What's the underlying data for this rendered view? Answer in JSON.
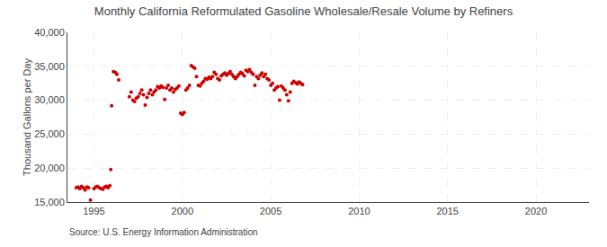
{
  "chart_data": {
    "type": "scatter",
    "title": "Monthly California Reformulated Gasoline Wholesale/Resale Volume by Refiners",
    "ylabel": "Thousand Gallons per Day",
    "annotations": [
      "Source: U.S. Energy Information Administration"
    ],
    "color": "#cc0000",
    "grid": true,
    "xlim": [
      1993.5,
      2023
    ],
    "ylim": [
      15000,
      40000
    ],
    "xticks": [
      1995,
      2000,
      2005,
      2010,
      2015,
      2020
    ],
    "yticks": [
      {
        "value": 15000,
        "label": "15,000"
      },
      {
        "value": 20000,
        "label": "20,000"
      },
      {
        "value": 25000,
        "label": "25,000"
      },
      {
        "value": 30000,
        "label": "30,000"
      },
      {
        "value": 35000,
        "label": "35,000"
      },
      {
        "value": 40000,
        "label": "40,000"
      }
    ],
    "x": [
      1994.0,
      1994.1,
      1994.2,
      1994.3,
      1994.4,
      1994.5,
      1994.6,
      1994.7,
      1994.8,
      1995.0,
      1995.1,
      1995.2,
      1995.3,
      1995.4,
      1995.5,
      1995.6,
      1995.7,
      1995.8,
      1995.9,
      1995.95,
      1996.0,
      1996.1,
      1996.2,
      1996.3,
      1996.4,
      1997.0,
      1997.1,
      1997.2,
      1997.3,
      1997.4,
      1997.5,
      1997.6,
      1997.7,
      1997.8,
      1997.9,
      1998.0,
      1998.1,
      1998.2,
      1998.3,
      1998.4,
      1998.5,
      1998.6,
      1998.7,
      1998.8,
      1998.9,
      1999.0,
      1999.1,
      1999.2,
      1999.3,
      1999.4,
      1999.5,
      1999.6,
      1999.7,
      1999.8,
      1999.9,
      2000.0,
      2000.1,
      2000.2,
      2000.3,
      2000.4,
      2000.5,
      2000.6,
      2000.7,
      2000.8,
      2000.9,
      2001.0,
      2001.1,
      2001.2,
      2001.3,
      2001.4,
      2001.5,
      2001.6,
      2001.7,
      2001.8,
      2001.9,
      2002.0,
      2002.1,
      2002.2,
      2002.3,
      2002.4,
      2002.5,
      2002.6,
      2002.7,
      2002.8,
      2002.9,
      2003.0,
      2003.1,
      2003.2,
      2003.3,
      2003.4,
      2003.5,
      2003.6,
      2003.7,
      2003.8,
      2003.9,
      2004.0,
      2004.1,
      2004.2,
      2004.3,
      2004.4,
      2004.5,
      2004.6,
      2004.7,
      2004.8,
      2004.9,
      2005.0,
      2005.1,
      2005.2,
      2005.3,
      2005.4,
      2005.5,
      2005.6,
      2005.7,
      2005.8,
      2005.9,
      2006.0,
      2006.1,
      2006.2,
      2006.3,
      2006.4,
      2006.5,
      2006.6,
      2006.7,
      2006.8
    ],
    "values": [
      17100,
      17200,
      17000,
      17300,
      17100,
      16800,
      17200,
      17100,
      15300,
      17000,
      17200,
      17300,
      17100,
      17000,
      16900,
      17200,
      17300,
      17100,
      17400,
      19800,
      29200,
      34200,
      34100,
      33800,
      33000,
      30500,
      31200,
      30000,
      29800,
      30300,
      30500,
      31000,
      31500,
      30800,
      29300,
      30400,
      31000,
      31500,
      30800,
      31200,
      31500,
      32000,
      31800,
      32100,
      31900,
      30100,
      31800,
      32200,
      31500,
      31800,
      31200,
      31600,
      31800,
      32100,
      28100,
      27900,
      28200,
      31500,
      31800,
      32200,
      35100,
      34900,
      34700,
      33500,
      32200,
      32100,
      32500,
      32800,
      33200,
      33100,
      33400,
      33200,
      33500,
      34100,
      33800,
      33200,
      33000,
      33600,
      33800,
      34000,
      33700,
      33900,
      34200,
      33800,
      33500,
      33200,
      33500,
      33800,
      34100,
      33900,
      33600,
      34400,
      34200,
      34500,
      34100,
      33800,
      32200,
      33500,
      33200,
      33700,
      34000,
      33500,
      33800,
      33200,
      33000,
      32200,
      32500,
      31500,
      31800,
      32000,
      30000,
      32100,
      31800,
      31500,
      30800,
      29900,
      31200,
      32500,
      32800,
      32600,
      32400,
      32700,
      32500,
      32300
    ]
  }
}
